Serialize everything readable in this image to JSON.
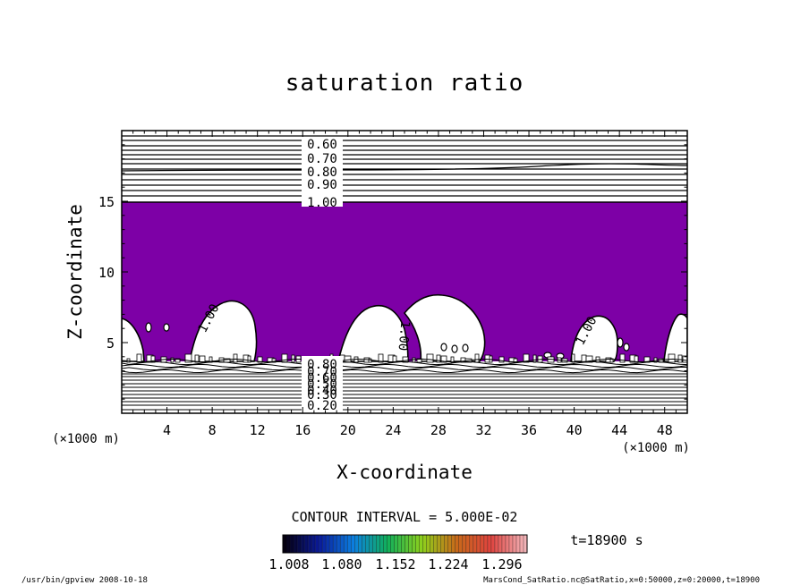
{
  "chart_data": {
    "type": "heatmap",
    "title": "saturation ratio",
    "xlabel": "X-coordinate",
    "ylabel": "Z-coordinate",
    "x_unit_label": "(×1000 m)",
    "z_unit_label": "(×1000 m)",
    "xlim": [
      0,
      50
    ],
    "ylim": [
      0,
      20
    ],
    "x_ticks": [
      4,
      8,
      12,
      16,
      20,
      24,
      28,
      32,
      36,
      40,
      44,
      48
    ],
    "y_ticks": [
      5,
      10,
      15
    ],
    "fill_threshold": 1.0,
    "fill_color": "#7d00a6",
    "upper_contours": [
      {
        "label": "0.60",
        "z": 18.8
      },
      {
        "label": "0.70",
        "z": 17.8
      },
      {
        "label": "0.80",
        "z": 16.8
      },
      {
        "label": "0.90",
        "z": 15.9
      },
      {
        "label": "1.00",
        "z": 15.0
      }
    ],
    "lower_contour_labels": [
      "0.80",
      "0.70",
      "0.60",
      "0.50",
      "0.40",
      "0.30",
      "0.20"
    ],
    "in_plot_labels": [
      "1.00",
      "1.00",
      "1.00"
    ],
    "contour_interval_text": "CONTOUR INTERVAL = 5.000E-02",
    "colorbar": {
      "labels": [
        "1.008",
        "1.080",
        "1.152",
        "1.224",
        "1.296"
      ],
      "stops": [
        "#050010",
        "#0a1a9a",
        "#0b7fe0",
        "#11b05a",
        "#8fd01c",
        "#c86a19",
        "#e0433f",
        "#f3b5b9"
      ]
    },
    "time_text": "t=18900 s",
    "date": "2008-10-18"
  },
  "footer": {
    "left": "/usr/bin/gpview   2008-10-18",
    "right": "MarsCond_SatRatio.nc@SatRatio,x=0:50000,z=0:20000,t=18900"
  }
}
